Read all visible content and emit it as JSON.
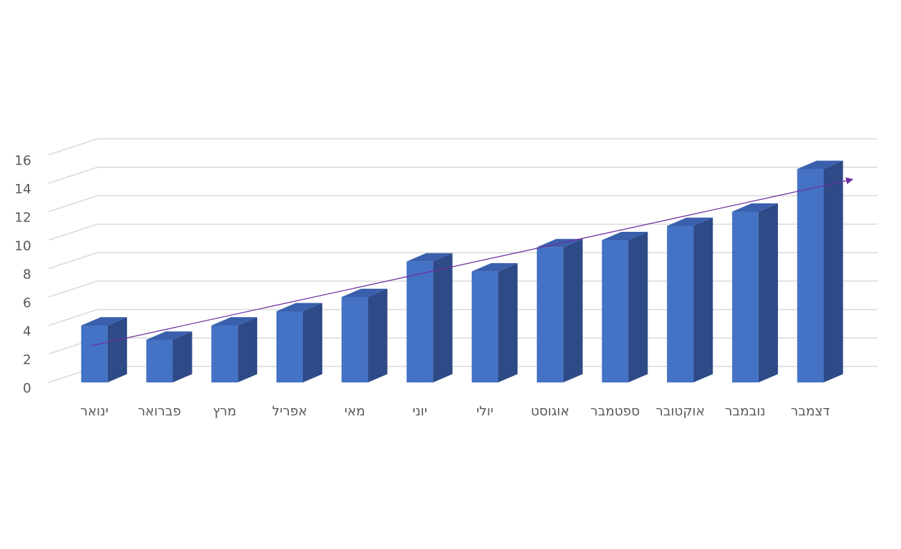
{
  "chart_data": {
    "type": "bar3d",
    "categories": [
      "ינואר",
      "פברואר",
      "מרץ",
      "אפריל",
      "מאי",
      "יוני",
      "יולי",
      "אוגוסט",
      "ספטמבר",
      "אוקטובר",
      "נובמבר",
      "דצמבר"
    ],
    "values": [
      4,
      3,
      4,
      5,
      6,
      8.5,
      7.8,
      9.5,
      10,
      11,
      12,
      15
    ],
    "color": "#4472c4",
    "side_color": "#2e4a87",
    "top_color": "#3a60ad",
    "ylim": [
      0,
      16
    ],
    "yticks": [
      0,
      2,
      4,
      6,
      8,
      10,
      12,
      14,
      16
    ],
    "grid": true,
    "trendline": true,
    "trendline_color": "#7030a0"
  }
}
